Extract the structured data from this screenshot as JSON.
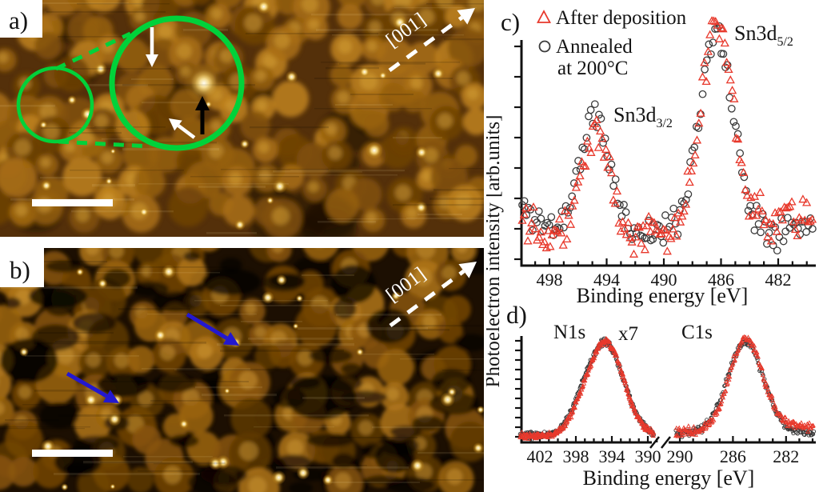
{
  "figure": {
    "type": "scientific multi-panel figure: STM images with XPS spectra",
    "panels": {
      "a": {
        "label": "a)",
        "kind": "STM image",
        "direction_label": "[001]",
        "scale_bar": true,
        "annotations": [
          "small green circle",
          "large green zoom circle",
          "dashed green connectors",
          "white down arrow",
          "white diagonal arrow",
          "black up arrow",
          "dashed [001] direction arrow"
        ],
        "palette": {
          "bg": "#54300a",
          "grains": [
            "#6f4206",
            "#83510a",
            "#97600e",
            "#aa7014",
            "#bf831d"
          ],
          "grain_top": "#d9a53c",
          "dark": "#1d0f01",
          "circle_color": "#00d23a"
        }
      },
      "b": {
        "label": "b)",
        "kind": "STM image",
        "direction_label": "[001]",
        "scale_bar": true,
        "annotations": [
          "two blue arrows",
          "dashed [001] direction arrow"
        ],
        "palette": {
          "bg": "#1c0f02",
          "grains": [
            "#5e3804",
            "#744706",
            "#8a5509",
            "#9d6610",
            "#b0761a"
          ],
          "grain_top": "#cf9a35",
          "dark": "#070301",
          "arrow_color": "#2318cf"
        }
      }
    }
  },
  "chart_data": [
    {
      "panel": "c",
      "panel_label": "c)",
      "type": "scatter",
      "xlabel": "Binding energy [eV]",
      "ylabel": "Photoelectron intensity [arb.units]",
      "x_ticks": [
        498,
        494,
        490,
        486,
        482
      ],
      "x_minor_tick_step_eV": 1,
      "x_range_eV": [
        499.9,
        479.6
      ],
      "x_axis_reversed": true,
      "y_axis": "arbitrary units, tick marks only",
      "legend": {
        "items": [
          {
            "label": "After deposition",
            "lines": [
              "After deposition"
            ],
            "marker": "triangle",
            "color": "#e8392c"
          },
          {
            "label": "Annealed at 200°C",
            "lines": [
              "Annealed",
              "at 200°C"
            ],
            "marker": "circle",
            "color": "#3a3a3a"
          }
        ]
      },
      "peak_labels": [
        {
          "text": "Sn3d",
          "subscript": "3/2"
        },
        {
          "text": "Sn3d",
          "subscript": "5/2"
        }
      ],
      "series": [
        {
          "name": "Annealed at 200°C",
          "marker": "circle",
          "color": "#3a3a3a",
          "step_eV": 0.145,
          "baseline": 0.13,
          "background": [
            {
              "center": 500.8,
              "sigma": 1.5,
              "amplitude": 0.13
            },
            {
              "center": 480.0,
              "sigma": 2.5,
              "amplitude": 0.03
            }
          ],
          "peaks": [
            {
              "center": 494.85,
              "sigma": 1.05,
              "amplitude": 0.5
            },
            {
              "center": 486.35,
              "sigma": 1.2,
              "amplitude": 0.85
            }
          ],
          "noise": 0.042,
          "seed": 11
        },
        {
          "name": "After deposition",
          "marker": "triangle",
          "color": "#e8392c",
          "step_eV": 0.13,
          "baseline": 0.12,
          "background": [
            {
              "center": 500.8,
              "sigma": 1.4,
              "amplitude": 0.12
            },
            {
              "center": 480.3,
              "sigma": 2.2,
              "amplitude": 0.1
            }
          ],
          "peaks": [
            {
              "center": 494.8,
              "sigma": 1.0,
              "amplitude": 0.44
            },
            {
              "center": 486.3,
              "sigma": 1.15,
              "amplitude": 0.91
            }
          ],
          "noise": 0.05,
          "seed": 22
        }
      ]
    },
    {
      "panel": "d",
      "panel_label": "d)",
      "type": "scatter",
      "xlabel": "Binding energy [eV]",
      "axis_break": true,
      "segments": [
        {
          "label": "N1s",
          "scale_note": "x7",
          "x_ticks": [
            402,
            398,
            394,
            390
          ],
          "x_range_eV": [
            404.2,
            389.3
          ],
          "series": [
            {
              "name": "Annealed at 200°C",
              "marker": "circle",
              "color": "#3a3a3a",
              "step_eV": 0.055,
              "baseline": 0.055,
              "peaks": [
                {
                  "center": 394.75,
                  "sigma": 2.05,
                  "amplitude": 0.95
                },
                {
                  "center": 397.7,
                  "sigma": 1.1,
                  "amplitude": 0.1
                }
              ],
              "noise": 0.02,
              "seed": 33
            },
            {
              "name": "After deposition",
              "marker": "triangle",
              "color": "#e8392c",
              "step_eV": 0.05,
              "baseline": 0.05,
              "peaks": [
                {
                  "center": 394.7,
                  "sigma": 2.0,
                  "amplitude": 0.97
                },
                {
                  "center": 397.7,
                  "sigma": 1.1,
                  "amplitude": 0.09
                }
              ],
              "noise": 0.02,
              "seed": 44
            }
          ]
        },
        {
          "label": "C1s",
          "x_ticks": [
            290,
            286,
            282
          ],
          "x_range_eV": [
            290.3,
            279.9
          ],
          "series": [
            {
              "name": "Annealed at 200°C",
              "marker": "circle",
              "color": "#3a3a3a",
              "step_eV": 0.053,
              "baseline": 0.085,
              "peaks": [
                {
                  "center": 285.05,
                  "sigma": 1.35,
                  "amplitude": 0.93
                }
              ],
              "noise": 0.024,
              "seed": 55
            },
            {
              "name": "After deposition",
              "marker": "triangle",
              "color": "#e8392c",
              "step_eV": 0.05,
              "baseline": 0.1,
              "peaks": [
                {
                  "center": 285.0,
                  "sigma": 1.25,
                  "amplitude": 0.95
                },
                {
                  "center": 280.6,
                  "sigma": 1.8,
                  "amplitude": 0.05
                }
              ],
              "noise": 0.026,
              "seed": 66
            }
          ]
        }
      ]
    }
  ]
}
